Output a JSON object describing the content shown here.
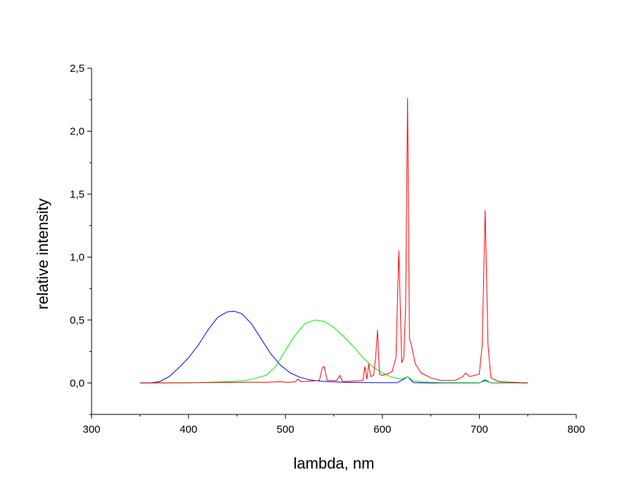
{
  "chart_data": {
    "type": "line",
    "xlabel": "lambda, nm",
    "ylabel": "relative intensity",
    "xlim": [
      300,
      800
    ],
    "ylim": [
      -0.25,
      2.5
    ],
    "xticks": [
      300,
      400,
      500,
      600,
      700,
      800
    ],
    "xtick_labels": [
      "300",
      "400",
      "500",
      "600",
      "700",
      "800"
    ],
    "yticks": [
      0.0,
      0.5,
      1.0,
      1.5,
      2.0,
      2.5
    ],
    "ytick_labels": [
      "0,0",
      "0,5",
      "1,0",
      "1,5",
      "2,0",
      "2,5"
    ],
    "grid": false,
    "legend": "none",
    "series": [
      {
        "color": "#0000ff",
        "x": [
          350,
          360,
          370,
          380,
          390,
          400,
          410,
          420,
          430,
          440,
          447,
          455,
          465,
          475,
          485,
          495,
          505,
          515,
          525,
          535,
          545,
          555,
          565,
          575,
          585,
          600,
          615,
          620,
          626,
          632,
          650,
          680,
          700,
          706,
          712,
          750
        ],
        "y": [
          0.0,
          0.0,
          0.01,
          0.05,
          0.12,
          0.2,
          0.3,
          0.42,
          0.52,
          0.565,
          0.57,
          0.55,
          0.47,
          0.35,
          0.23,
          0.14,
          0.08,
          0.045,
          0.025,
          0.015,
          0.01,
          0.007,
          0.005,
          0.004,
          0.003,
          0.002,
          0.002,
          0.02,
          0.05,
          0.002,
          0.0,
          0.0,
          0.0,
          0.025,
          0.0,
          0.0
        ]
      },
      {
        "color": "#00ee00",
        "x": [
          350,
          400,
          440,
          460,
          480,
          490,
          500,
          510,
          520,
          530,
          540,
          550,
          560,
          570,
          580,
          590,
          600,
          610,
          620,
          626,
          632,
          640,
          660,
          700,
          706,
          712,
          750
        ],
        "y": [
          0.0,
          0.0,
          0.01,
          0.02,
          0.06,
          0.13,
          0.26,
          0.38,
          0.47,
          0.5,
          0.49,
          0.44,
          0.37,
          0.29,
          0.2,
          0.13,
          0.08,
          0.045,
          0.03,
          0.05,
          0.015,
          0.008,
          0.003,
          0.002,
          0.015,
          0.002,
          0.0
        ]
      },
      {
        "color": "#ff0000",
        "x": [
          350,
          420,
          450,
          470,
          480,
          495,
          500,
          510,
          513,
          516,
          535,
          538,
          540,
          543,
          553,
          556,
          559,
          580,
          582,
          584,
          586,
          588,
          591,
          593,
          595,
          597,
          600,
          605,
          610,
          614,
          617,
          620,
          622,
          624,
          626,
          628,
          630,
          634,
          640,
          650,
          660,
          675,
          683,
          686,
          690,
          695,
          700,
          703,
          706,
          709,
          712,
          720,
          750
        ],
        "y": [
          0.0,
          0.003,
          0.005,
          0.006,
          0.005,
          0.01,
          0.005,
          0.008,
          0.03,
          0.01,
          0.02,
          0.12,
          0.13,
          0.02,
          0.02,
          0.06,
          0.01,
          0.02,
          0.13,
          0.03,
          0.15,
          0.05,
          0.06,
          0.2,
          0.42,
          0.07,
          0.06,
          0.07,
          0.09,
          0.2,
          1.05,
          0.16,
          0.2,
          0.6,
          2.26,
          0.35,
          0.3,
          0.15,
          0.08,
          0.04,
          0.02,
          0.02,
          0.05,
          0.08,
          0.05,
          0.06,
          0.07,
          0.3,
          1.37,
          0.3,
          0.04,
          0.01,
          0.0
        ]
      }
    ]
  }
}
